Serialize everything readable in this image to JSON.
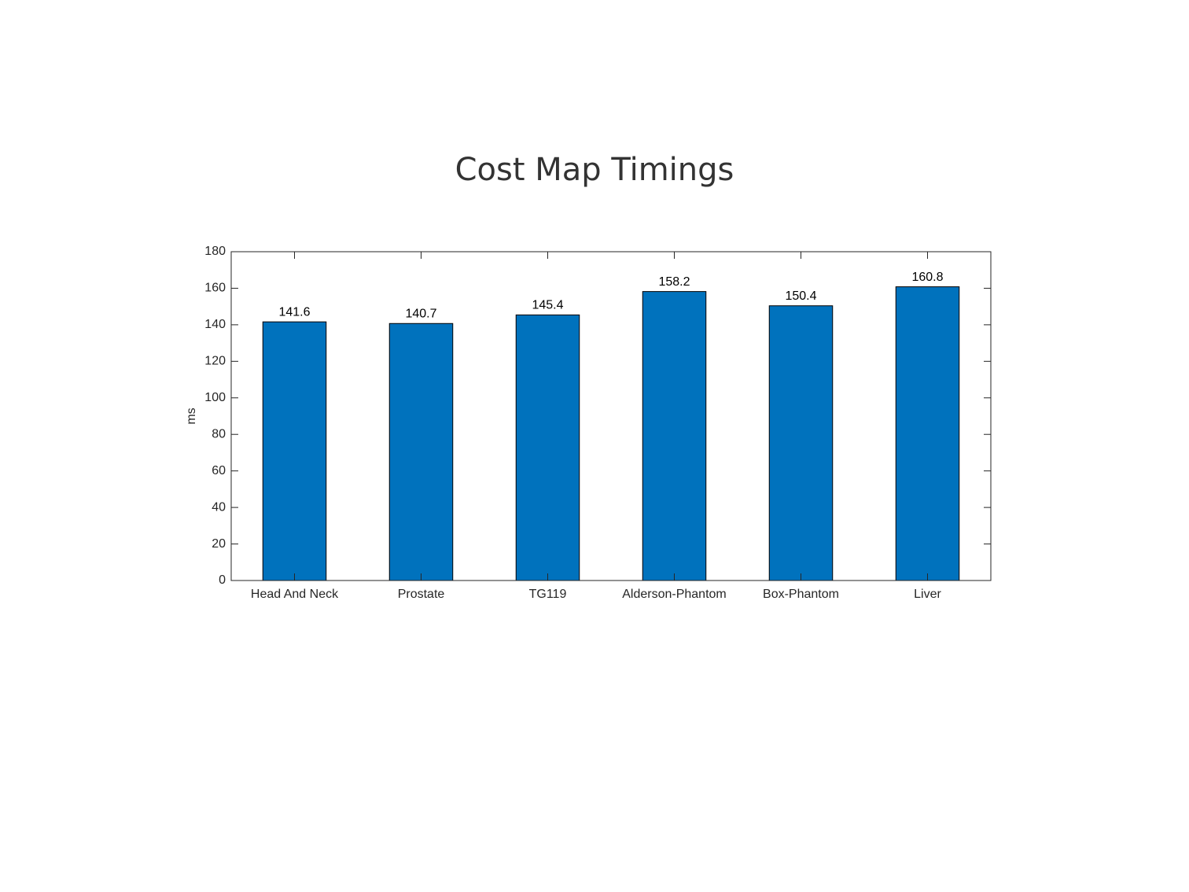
{
  "chart_data": {
    "type": "bar",
    "title": "Cost Map Timings",
    "ylabel": "ms",
    "categories": [
      "Head And Neck",
      "Prostate",
      "TG119",
      "Alderson-Phantom",
      "Box-Phantom",
      "Liver"
    ],
    "values": [
      141.6,
      140.7,
      145.4,
      158.2,
      150.4,
      160.8
    ],
    "color": "#0072bd",
    "ylim": [
      0,
      180
    ],
    "yticks": [
      0,
      20,
      40,
      60,
      80,
      100,
      120,
      140,
      160,
      180
    ],
    "grid": false
  }
}
